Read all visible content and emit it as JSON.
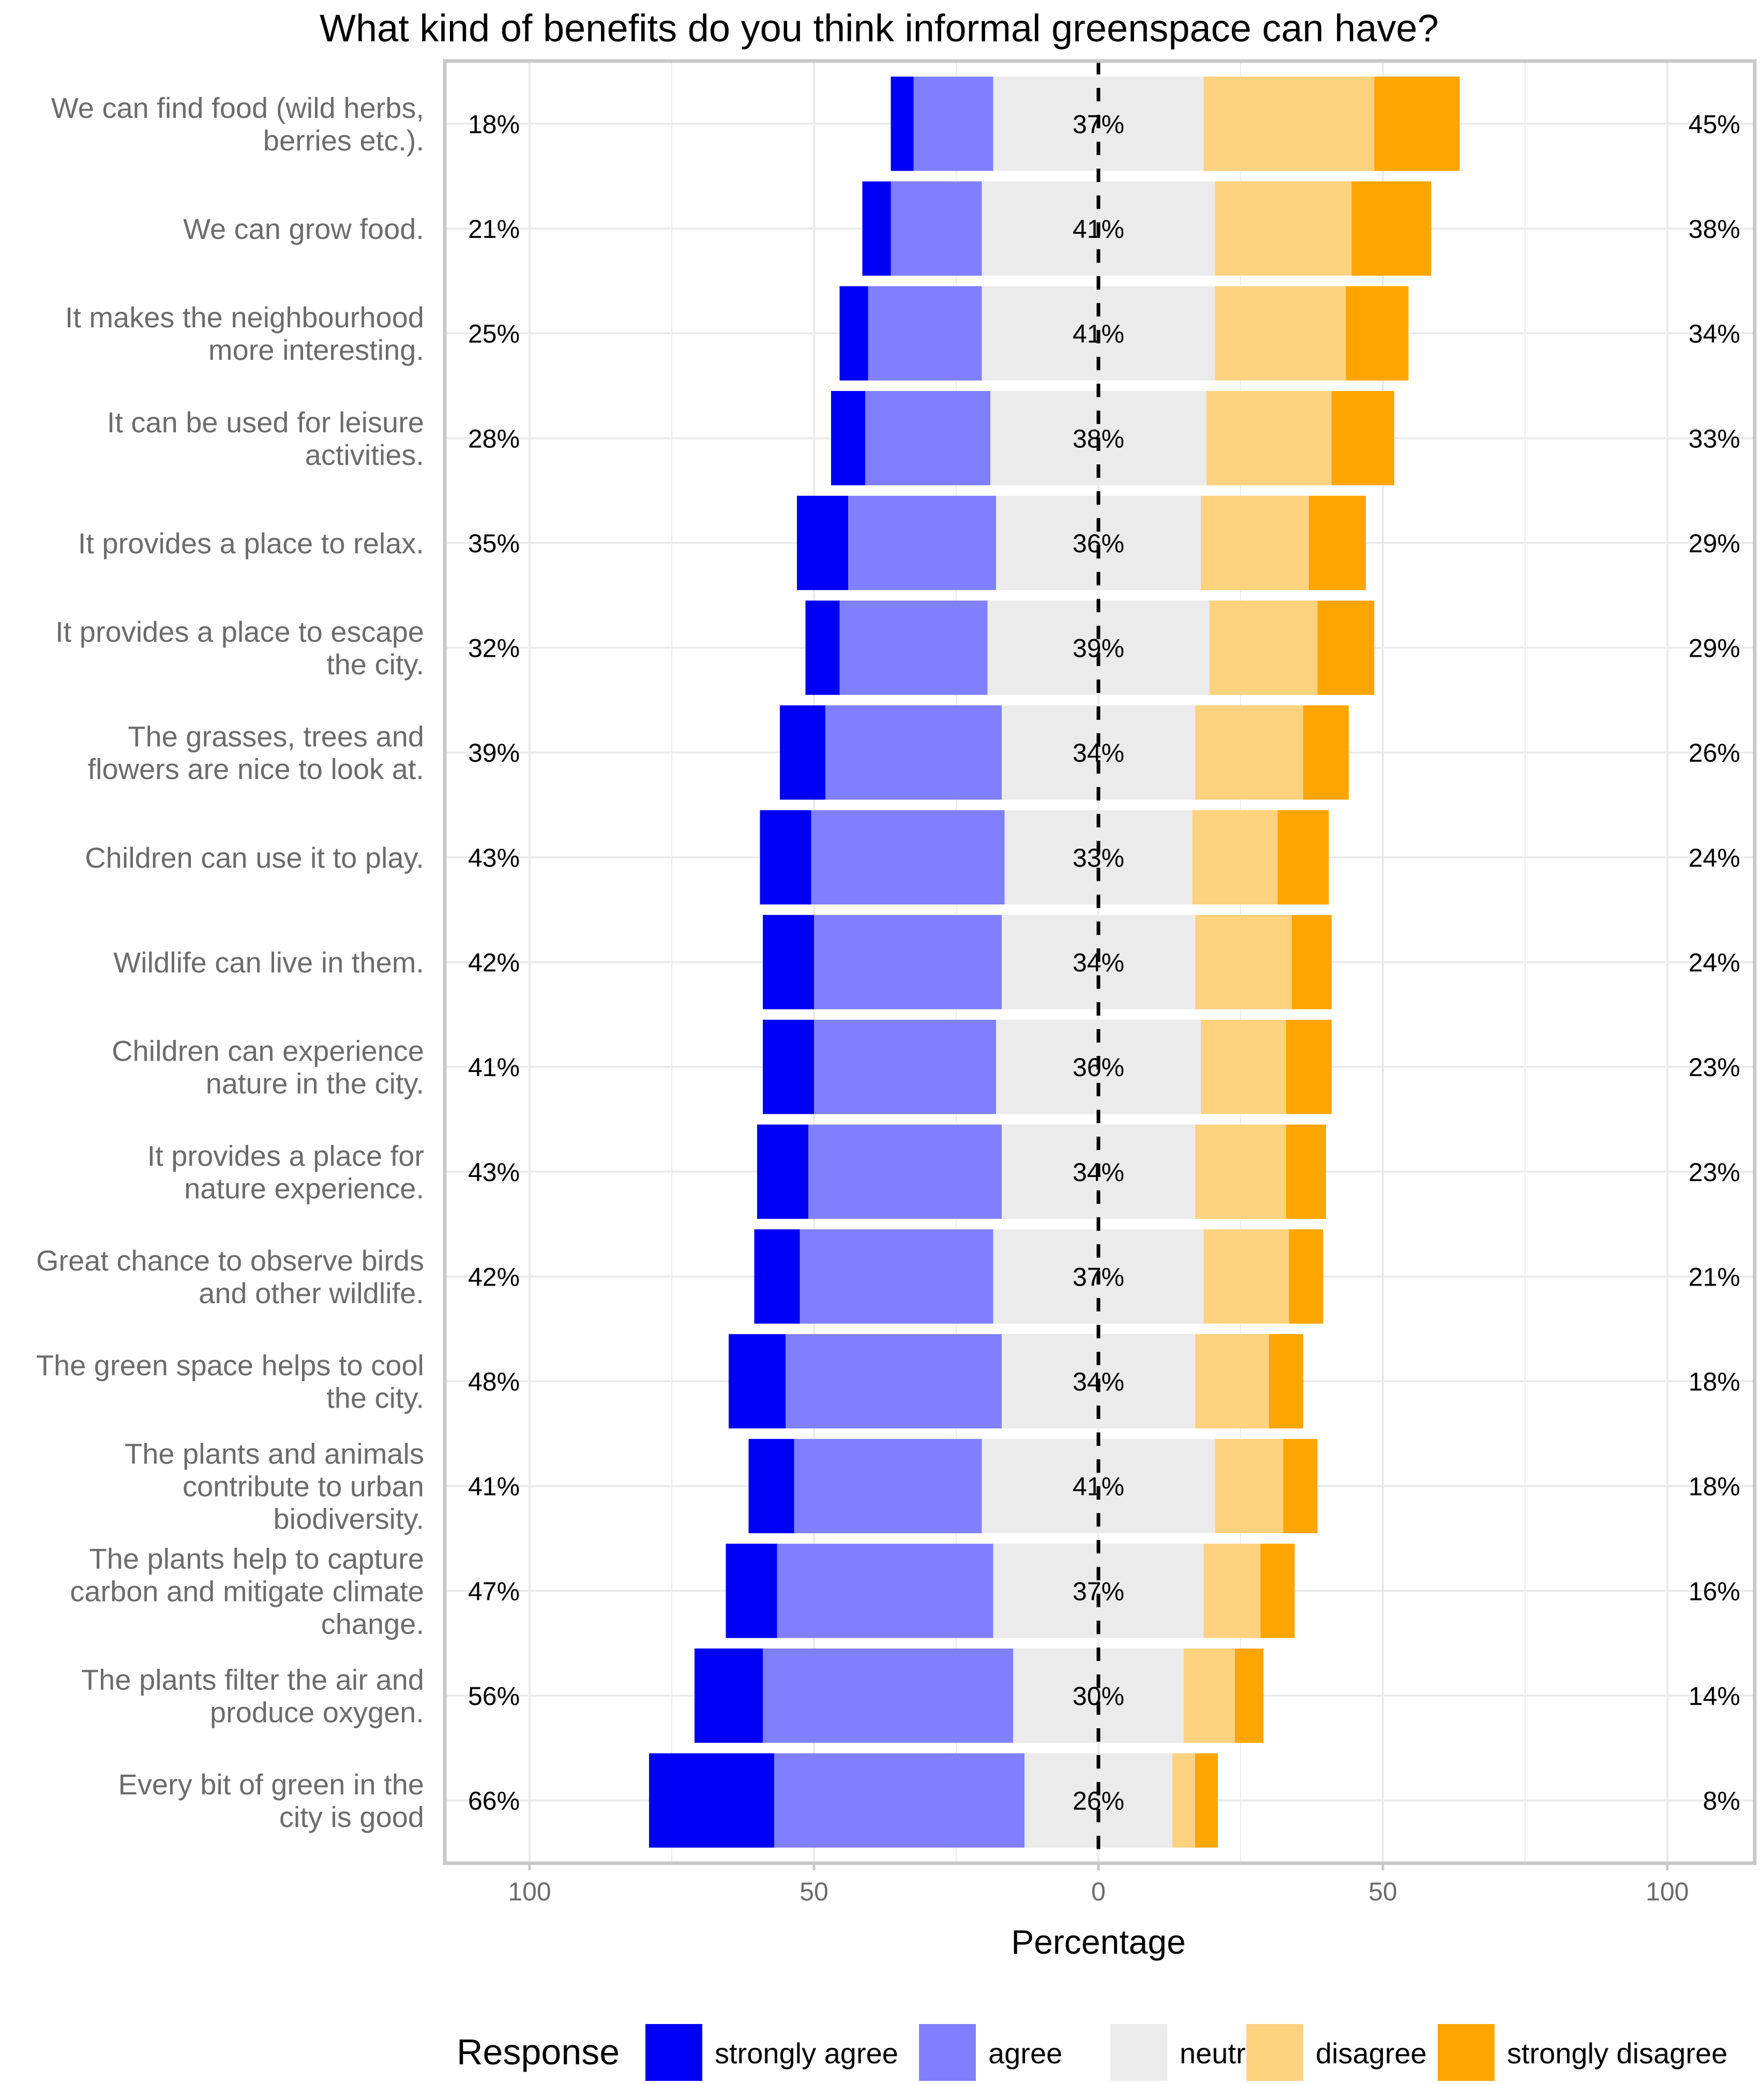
{
  "chart_data": {
    "type": "bar",
    "subtype": "diverging-stacked-likert",
    "title": "What kind of benefits do you think informal greenspace can have?",
    "xlabel": "Percentage",
    "ylabel": "",
    "xlim": [
      -115,
      115
    ],
    "x_ticks": [
      -100,
      -50,
      0,
      50,
      100
    ],
    "x_tick_labels": [
      "100",
      "50",
      "0",
      "50",
      "100"
    ],
    "grid": true,
    "legend": {
      "title": "Response",
      "position": "bottom",
      "entries": [
        "strongly agree",
        "agree",
        "neutral",
        "disagree",
        "strongly disagree"
      ]
    },
    "colors": {
      "strongly agree": "#0000f5",
      "agree": "#8080ff",
      "neutral": "#ebebeb",
      "disagree": "#ffd27f",
      "strongly disagree": "#ffa500"
    },
    "categories": [
      [
        "We can find food (wild herbs,",
        "berries etc.)."
      ],
      [
        "We can grow food."
      ],
      [
        "It makes the neighbourhood",
        "more interesting."
      ],
      [
        "It can be used for leisure",
        "activities."
      ],
      [
        "It provides a place to relax."
      ],
      [
        "It provides a place to escape",
        "the city."
      ],
      [
        "The grasses, trees and",
        "flowers are nice to look at."
      ],
      [
        "Children can use it to play."
      ],
      [
        "Wildlife can live in them."
      ],
      [
        "Children can experience",
        "nature in the city."
      ],
      [
        "It provides a place for",
        "nature experience."
      ],
      [
        "Great chance to observe birds",
        "and other wildlife."
      ],
      [
        "The green space helps to cool",
        "the city."
      ],
      [
        "The plants and animals",
        "contribute to urban",
        "biodiversity."
      ],
      [
        "The plants help to capture",
        "carbon and mitigate climate",
        "change."
      ],
      [
        "The plants filter the air and",
        "produce oxygen."
      ],
      [
        "Every bit of green in the",
        "city is good"
      ]
    ],
    "series": [
      {
        "name": "strongly agree",
        "values": [
          4,
          5,
          5,
          6,
          9,
          6,
          8,
          9,
          9,
          9,
          9,
          8,
          10,
          8,
          9,
          12,
          22
        ]
      },
      {
        "name": "agree",
        "values": [
          14,
          16,
          20,
          22,
          26,
          26,
          31,
          34,
          33,
          32,
          34,
          34,
          38,
          33,
          38,
          44,
          44
        ]
      },
      {
        "name": "neutral",
        "values": [
          37,
          41,
          41,
          38,
          36,
          39,
          34,
          33,
          34,
          36,
          34,
          37,
          34,
          41,
          37,
          30,
          26
        ]
      },
      {
        "name": "disagree",
        "values": [
          30,
          24,
          23,
          22,
          19,
          19,
          19,
          15,
          17,
          15,
          16,
          15,
          13,
          12,
          10,
          9,
          4
        ]
      },
      {
        "name": "strongly disagree",
        "values": [
          15,
          14,
          11,
          11,
          10,
          10,
          8,
          9,
          7,
          8,
          7,
          6,
          6,
          6,
          6,
          5,
          4
        ]
      }
    ],
    "agree_labels": [
      "18%",
      "21%",
      "25%",
      "28%",
      "35%",
      "32%",
      "39%",
      "43%",
      "42%",
      "41%",
      "43%",
      "42%",
      "48%",
      "41%",
      "47%",
      "56%",
      "66%"
    ],
    "neutral_labels": [
      "37%",
      "41%",
      "41%",
      "38%",
      "36%",
      "39%",
      "34%",
      "33%",
      "34%",
      "36%",
      "34%",
      "37%",
      "34%",
      "41%",
      "37%",
      "30%",
      "26%"
    ],
    "disagree_labels": [
      "45%",
      "38%",
      "34%",
      "33%",
      "29%",
      "29%",
      "26%",
      "24%",
      "24%",
      "23%",
      "23%",
      "21%",
      "18%",
      "18%",
      "16%",
      "14%",
      "8%"
    ]
  }
}
